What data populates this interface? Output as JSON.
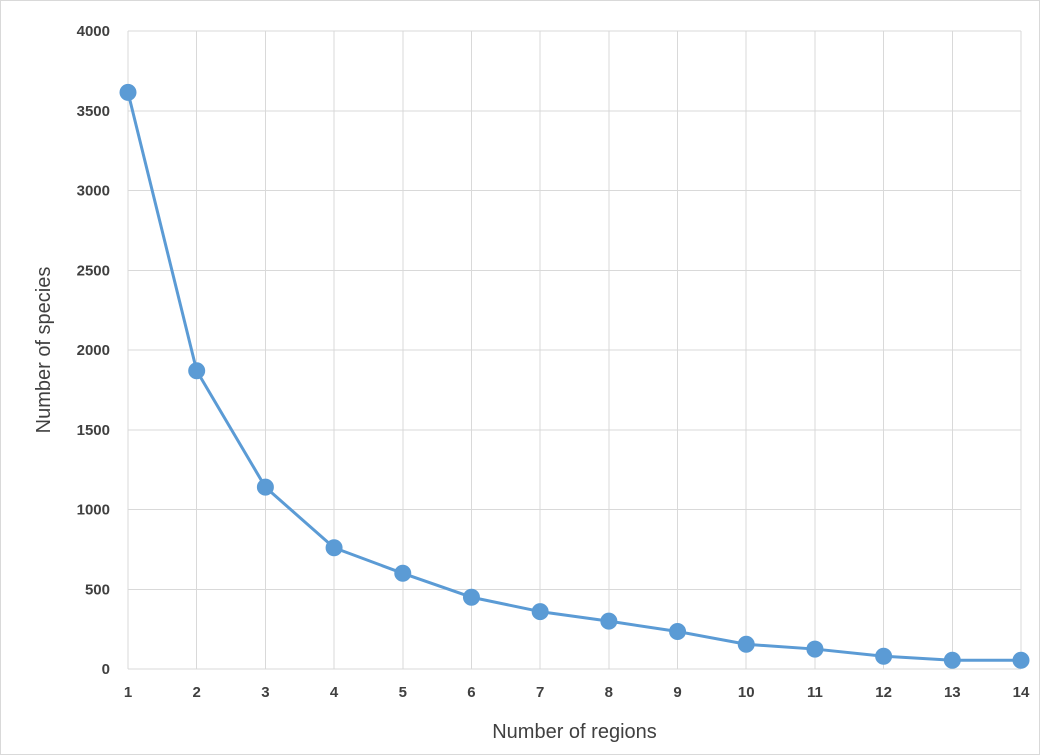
{
  "chart_data": {
    "type": "line",
    "title": "",
    "xlabel": "Number of regions",
    "ylabel": "Number of species",
    "x": [
      1,
      2,
      3,
      4,
      5,
      6,
      7,
      8,
      9,
      10,
      11,
      12,
      13,
      14
    ],
    "series": [
      {
        "values": [
          3615,
          1870,
          1140,
          760,
          600,
          450,
          360,
          300,
          235,
          155,
          125,
          80,
          55,
          55
        ]
      }
    ],
    "xlim": [
      1,
      14
    ],
    "ylim": [
      0,
      4000
    ],
    "yticks": [
      0,
      500,
      1000,
      1500,
      2000,
      2500,
      3000,
      3500,
      4000
    ],
    "xticks": [
      1,
      2,
      3,
      4,
      5,
      6,
      7,
      8,
      9,
      10,
      11,
      12,
      13,
      14
    ],
    "grid": true,
    "legend": "none",
    "colors": {
      "series": "#5b9bd5",
      "grid": "#d9d9d9",
      "text": "#404040"
    }
  }
}
